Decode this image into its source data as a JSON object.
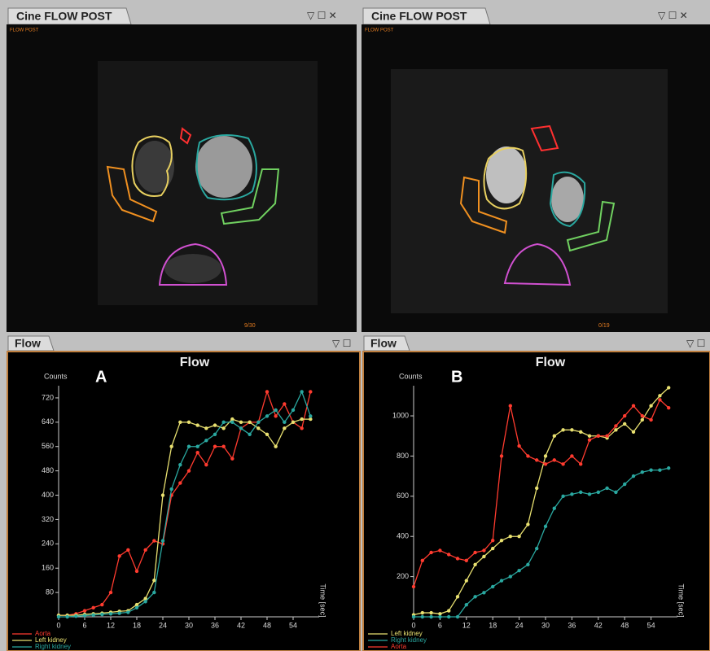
{
  "windows": [
    {
      "title": "Cine FLOW POST",
      "subtitle": "FLOW POST",
      "frame": "9/30"
    },
    {
      "title": "Cine FLOW POST",
      "subtitle": "FLOW POST",
      "frame": "0/19"
    }
  ],
  "flow_tabs": [
    "Flow",
    "Flow"
  ],
  "chart_data": [
    {
      "type": "line",
      "title": "Flow",
      "panel_label": "A",
      "y_label": "Counts",
      "x_label": "Time [sec]",
      "x": [
        0,
        2,
        4,
        6,
        8,
        10,
        12,
        14,
        16,
        18,
        20,
        22,
        24,
        26,
        28,
        30,
        32,
        34,
        36,
        38,
        40,
        42,
        44,
        46,
        48,
        50,
        52,
        54,
        56,
        58
      ],
      "xlim": [
        0,
        60
      ],
      "xticks": [
        0,
        6,
        12,
        18,
        24,
        30,
        36,
        42,
        48,
        54
      ],
      "ylim": [
        0,
        760
      ],
      "yticks": [
        80,
        160,
        240,
        320,
        400,
        480,
        560,
        640,
        720
      ],
      "series": [
        {
          "name": "Aorta",
          "color": "#ff3b2f",
          "values": [
            5,
            5,
            10,
            20,
            30,
            40,
            80,
            200,
            220,
            150,
            220,
            250,
            240,
            400,
            440,
            480,
            540,
            500,
            560,
            560,
            520,
            620,
            640,
            640,
            740,
            660,
            700,
            640,
            620,
            740
          ]
        },
        {
          "name": "Left kidney",
          "color": "#e8e070",
          "values": [
            5,
            5,
            5,
            8,
            10,
            12,
            15,
            18,
            20,
            40,
            60,
            120,
            400,
            560,
            640,
            640,
            630,
            620,
            630,
            620,
            650,
            640,
            640,
            620,
            600,
            560,
            620,
            640,
            650,
            650
          ]
        },
        {
          "name": "Right kidney",
          "color": "#2aa8a0",
          "values": [
            0,
            0,
            2,
            4,
            6,
            8,
            10,
            12,
            15,
            30,
            50,
            80,
            250,
            420,
            500,
            560,
            560,
            580,
            600,
            640,
            640,
            620,
            600,
            640,
            660,
            680,
            640,
            680,
            740,
            660
          ]
        }
      ]
    },
    {
      "type": "line",
      "title": "Flow",
      "panel_label": "B",
      "y_label": "Counts",
      "x_label": "Time [sec]",
      "x": [
        0,
        2,
        4,
        6,
        8,
        10,
        12,
        14,
        16,
        18,
        20,
        22,
        24,
        26,
        28,
        30,
        32,
        34,
        36,
        38,
        40,
        42,
        44,
        46,
        48,
        50,
        52,
        54,
        56,
        58
      ],
      "xlim": [
        0,
        60
      ],
      "xticks": [
        0,
        6,
        12,
        18,
        24,
        30,
        36,
        42,
        48,
        54
      ],
      "ylim": [
        0,
        1150
      ],
      "yticks": [
        200,
        400,
        600,
        800,
        1000
      ],
      "series": [
        {
          "name": "Left kidney",
          "color": "#e8e070",
          "values": [
            10,
            20,
            20,
            15,
            30,
            100,
            180,
            260,
            300,
            340,
            380,
            400,
            400,
            460,
            640,
            800,
            900,
            930,
            930,
            920,
            900,
            900,
            890,
            930,
            960,
            920,
            980,
            1050,
            1100,
            1140
          ]
        },
        {
          "name": "Right kidney",
          "color": "#2aa8a0",
          "values": [
            0,
            0,
            0,
            0,
            0,
            0,
            60,
            100,
            120,
            150,
            180,
            200,
            230,
            260,
            340,
            450,
            540,
            600,
            610,
            620,
            610,
            620,
            640,
            620,
            660,
            700,
            720,
            730,
            730,
            740
          ]
        },
        {
          "name": "Aorta",
          "color": "#ff3b2f",
          "values": [
            150,
            280,
            320,
            330,
            310,
            290,
            280,
            320,
            330,
            380,
            800,
            1050,
            850,
            800,
            780,
            760,
            780,
            760,
            800,
            760,
            880,
            900,
            900,
            950,
            1000,
            1050,
            1000,
            980,
            1080,
            1040
          ]
        }
      ]
    }
  ]
}
